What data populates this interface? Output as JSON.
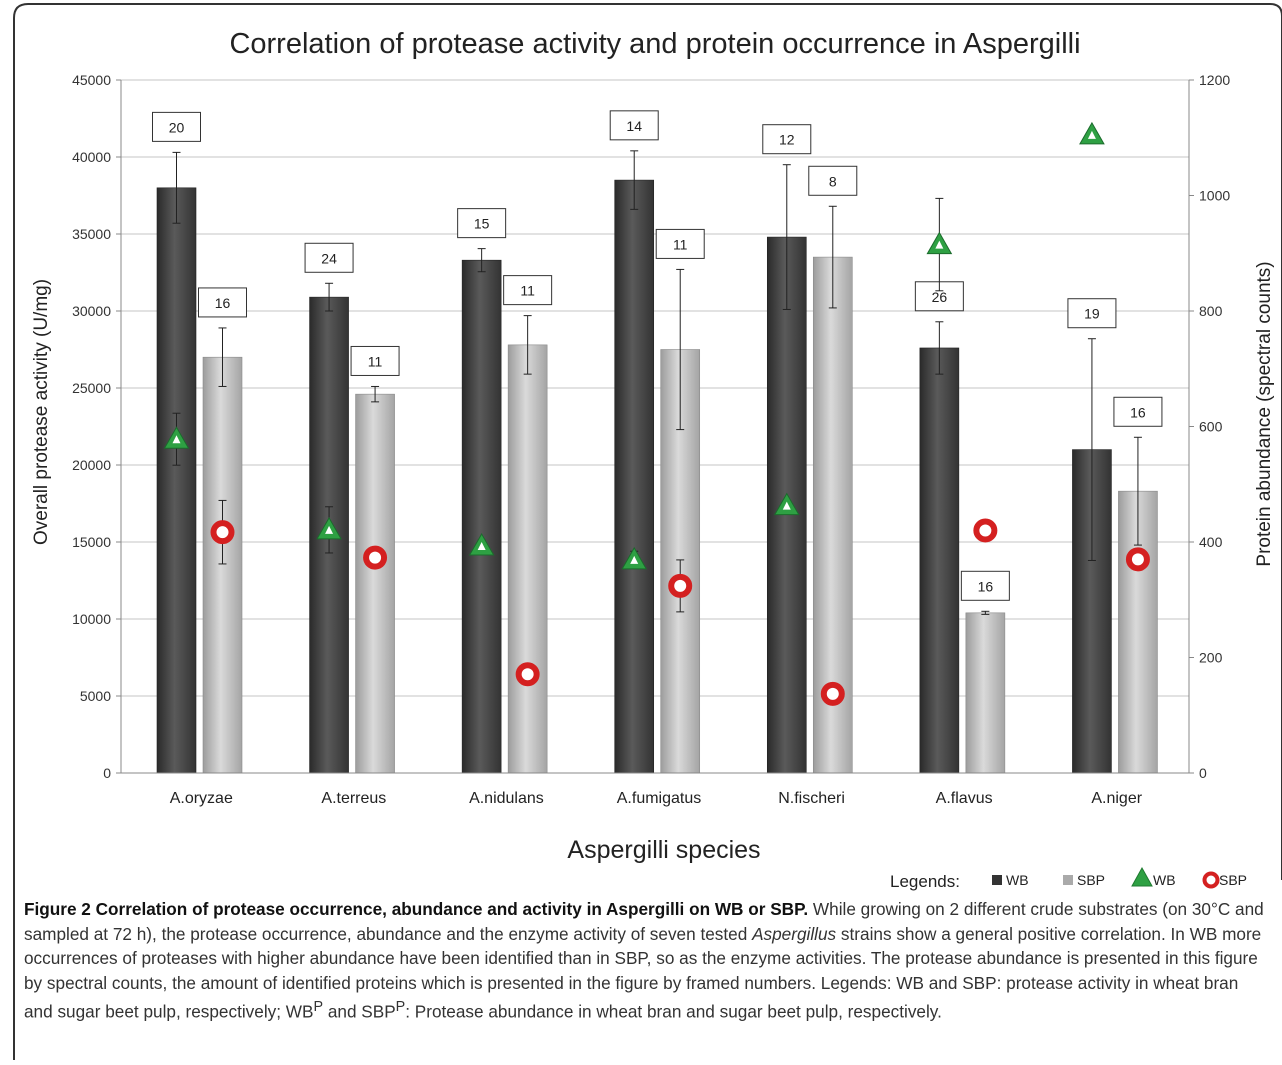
{
  "chart_data": {
    "type": "bar",
    "title": "Correlation of protease activity and protein  occurrence in Aspergilli",
    "xlabel": "Aspergilli species",
    "ylabel": "Overall protease activity (U/mg)",
    "y2label": "Protein abundance (spectral counts)",
    "categories": [
      "A.oryzae",
      "A.terreus",
      "A.nidulans",
      "A.fumigatus",
      "N.fischeri",
      "A.flavus",
      "A.niger"
    ],
    "ylim": [
      0,
      45000
    ],
    "y2lim": [
      0,
      1200
    ],
    "yticks": [
      "0",
      "5000",
      "10000",
      "15000",
      "20000",
      "25000",
      "30000",
      "35000",
      "40000",
      "45000"
    ],
    "y2ticks": [
      "0",
      "200",
      "400",
      "600",
      "800",
      "1000",
      "1200"
    ],
    "grid": true,
    "legend_position": "bottom-right",
    "legend_prefix": "Legends:",
    "bar_series": [
      {
        "name": "WB",
        "color": "#4a4a4a",
        "values": [
          38000,
          30900,
          33300,
          38500,
          34800,
          27600,
          21000
        ],
        "error": [
          2300,
          900,
          750,
          1900,
          4700,
          1700,
          7200
        ],
        "labels": [
          "20",
          "24",
          "15",
          "14",
          "12",
          "26",
          "19"
        ]
      },
      {
        "name": "SBP",
        "color": "#b8b8b8",
        "values": [
          27000,
          24600,
          27800,
          27500,
          33500,
          10400,
          18300
        ],
        "error": [
          1900,
          500,
          1900,
          5200,
          3300,
          100,
          3500
        ],
        "labels": [
          "16",
          "11",
          "11",
          "11",
          "8",
          "16",
          "16"
        ]
      }
    ],
    "marker_series": [
      {
        "name": "WB",
        "marker": "triangle",
        "color": "#2ea043",
        "axis": "secondary",
        "values": [
          578,
          421,
          393,
          369,
          463,
          915,
          1105
        ],
        "error": [
          45,
          40,
          10,
          15,
          0,
          80,
          8
        ]
      },
      {
        "name": "SBP",
        "marker": "ring",
        "color": "#d42020",
        "axis": "secondary",
        "values": [
          417,
          373,
          171,
          324,
          137,
          420,
          370
        ],
        "error": [
          55,
          5,
          8,
          45,
          12,
          0,
          18
        ]
      }
    ]
  },
  "caption": {
    "title": "Figure 2 Correlation of protease occurrence, abundance and activity in Aspergilli on WB or SBP.",
    "body_1": "While growing on 2 different crude substrates (on 30°C and sampled at 72 h), the protease occurrence, abundance and the enzyme activity of seven tested",
    "body_italic": "Aspergillus",
    "body_2": "strains show a general positive correlation. In WB more occurrences of proteases with higher abundance have been identified than in SBP, so as the enzyme activities. The protease abundance is presented in this figure by spectral counts, the amount of identified proteins which is presented in the figure by framed numbers. Legends: WB and SBP: protease activity in wheat bran and sugar beet pulp, respectively; WB",
    "sup_1": "P",
    "and_text": "and SBP",
    "sup_2": "P",
    "body_3": ": Protease abundance in wheat bran and sugar beet pulp, respectively."
  }
}
